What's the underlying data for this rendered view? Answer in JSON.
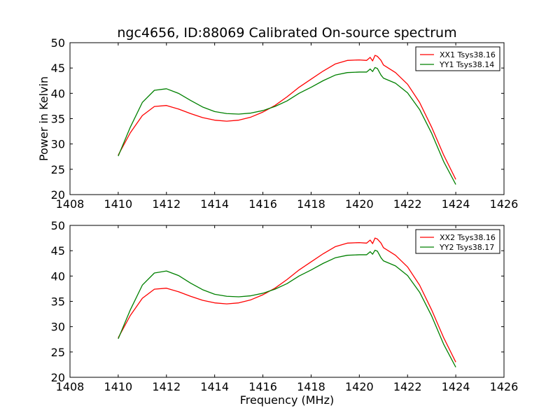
{
  "figure": {
    "title": "ngc4656, ID:88069 Calibrated On-source spectrum",
    "xlabel": "Frequency (MHz)",
    "ylabel": "Power in Kelvin"
  },
  "chart_data": [
    {
      "type": "line",
      "xlim": [
        1408,
        1426
      ],
      "ylim": [
        20,
        50
      ],
      "xticks": [
        1408,
        1410,
        1412,
        1414,
        1416,
        1418,
        1420,
        1422,
        1424,
        1426
      ],
      "yticks": [
        20,
        25,
        30,
        35,
        40,
        45,
        50
      ],
      "xlabel": "",
      "ylabel": "Power in Kelvin",
      "grid": false,
      "legend": "top-right",
      "series": [
        {
          "name": "XX1 Tsys38.16",
          "color": "#ff0000",
          "x": [
            1410,
            1410.5,
            1411,
            1411.5,
            1412,
            1412.5,
            1413,
            1413.5,
            1414,
            1414.5,
            1415,
            1415.5,
            1416,
            1416.5,
            1417,
            1417.5,
            1418,
            1418.5,
            1419,
            1419.5,
            1420,
            1420.3,
            1420.45,
            1420.55,
            1420.65,
            1420.75,
            1420.9,
            1421.0,
            1421.5,
            1422,
            1422.5,
            1423,
            1423.5,
            1424
          ],
          "y": [
            27.8,
            32.2,
            35.6,
            37.4,
            37.6,
            36.9,
            36.0,
            35.2,
            34.7,
            34.5,
            34.7,
            35.3,
            36.3,
            37.6,
            39.3,
            41.2,
            42.8,
            44.4,
            45.8,
            46.5,
            46.6,
            46.5,
            47.1,
            46.4,
            47.5,
            47.3,
            46.5,
            45.6,
            44.1,
            41.8,
            38.2,
            33.3,
            27.8,
            23.0
          ]
        },
        {
          "name": "YY1 Tsys38.14",
          "color": "#008000",
          "x": [
            1410,
            1410.5,
            1411,
            1411.5,
            1412,
            1412.5,
            1413,
            1413.5,
            1414,
            1414.5,
            1415,
            1415.5,
            1416,
            1416.5,
            1417,
            1417.5,
            1418,
            1418.5,
            1419,
            1419.5,
            1420,
            1420.3,
            1420.45,
            1420.55,
            1420.65,
            1420.75,
            1420.9,
            1421.0,
            1421.5,
            1422,
            1422.5,
            1423,
            1423.5,
            1424
          ],
          "y": [
            27.6,
            33.3,
            38.2,
            40.6,
            40.9,
            40.0,
            38.6,
            37.3,
            36.4,
            36.0,
            35.9,
            36.1,
            36.6,
            37.4,
            38.5,
            40.0,
            41.2,
            42.5,
            43.6,
            44.1,
            44.2,
            44.2,
            44.8,
            44.3,
            45.1,
            44.9,
            43.6,
            43.0,
            42.0,
            40.1,
            36.8,
            32.1,
            26.5,
            22.0
          ]
        }
      ]
    },
    {
      "type": "line",
      "xlim": [
        1408,
        1426
      ],
      "ylim": [
        20,
        50
      ],
      "xticks": [
        1408,
        1410,
        1412,
        1414,
        1416,
        1418,
        1420,
        1422,
        1424,
        1426
      ],
      "yticks": [
        20,
        25,
        30,
        35,
        40,
        45,
        50
      ],
      "xlabel": "Frequency (MHz)",
      "ylabel": "",
      "grid": false,
      "legend": "top-right",
      "series": [
        {
          "name": "XX2 Tsys38.16",
          "color": "#ff0000",
          "x": [
            1410,
            1410.5,
            1411,
            1411.5,
            1412,
            1412.5,
            1413,
            1413.5,
            1414,
            1414.5,
            1415,
            1415.5,
            1416,
            1416.5,
            1417,
            1417.5,
            1418,
            1418.5,
            1419,
            1419.5,
            1420,
            1420.3,
            1420.45,
            1420.55,
            1420.65,
            1420.75,
            1420.9,
            1421.0,
            1421.5,
            1422,
            1422.5,
            1423,
            1423.5,
            1424
          ],
          "y": [
            27.8,
            32.2,
            35.6,
            37.4,
            37.6,
            36.9,
            36.0,
            35.2,
            34.7,
            34.5,
            34.7,
            35.3,
            36.3,
            37.6,
            39.3,
            41.2,
            42.8,
            44.4,
            45.8,
            46.5,
            46.6,
            46.5,
            47.1,
            46.4,
            47.5,
            47.3,
            46.5,
            45.6,
            44.1,
            41.8,
            38.2,
            33.3,
            27.8,
            23.0
          ]
        },
        {
          "name": "YY2 Tsys38.17",
          "color": "#008000",
          "x": [
            1410,
            1410.5,
            1411,
            1411.5,
            1412,
            1412.5,
            1413,
            1413.5,
            1414,
            1414.5,
            1415,
            1415.5,
            1416,
            1416.5,
            1417,
            1417.5,
            1418,
            1418.5,
            1419,
            1419.5,
            1420,
            1420.3,
            1420.45,
            1420.55,
            1420.65,
            1420.75,
            1420.9,
            1421.0,
            1421.5,
            1422,
            1422.5,
            1423,
            1423.5,
            1424
          ],
          "y": [
            27.6,
            33.3,
            38.2,
            40.6,
            41.0,
            40.1,
            38.6,
            37.3,
            36.4,
            36.0,
            35.9,
            36.1,
            36.6,
            37.4,
            38.5,
            40.0,
            41.2,
            42.5,
            43.6,
            44.1,
            44.2,
            44.2,
            44.8,
            44.3,
            45.1,
            44.9,
            43.6,
            43.0,
            42.0,
            40.1,
            36.8,
            32.1,
            26.5,
            22.0
          ]
        }
      ]
    }
  ]
}
